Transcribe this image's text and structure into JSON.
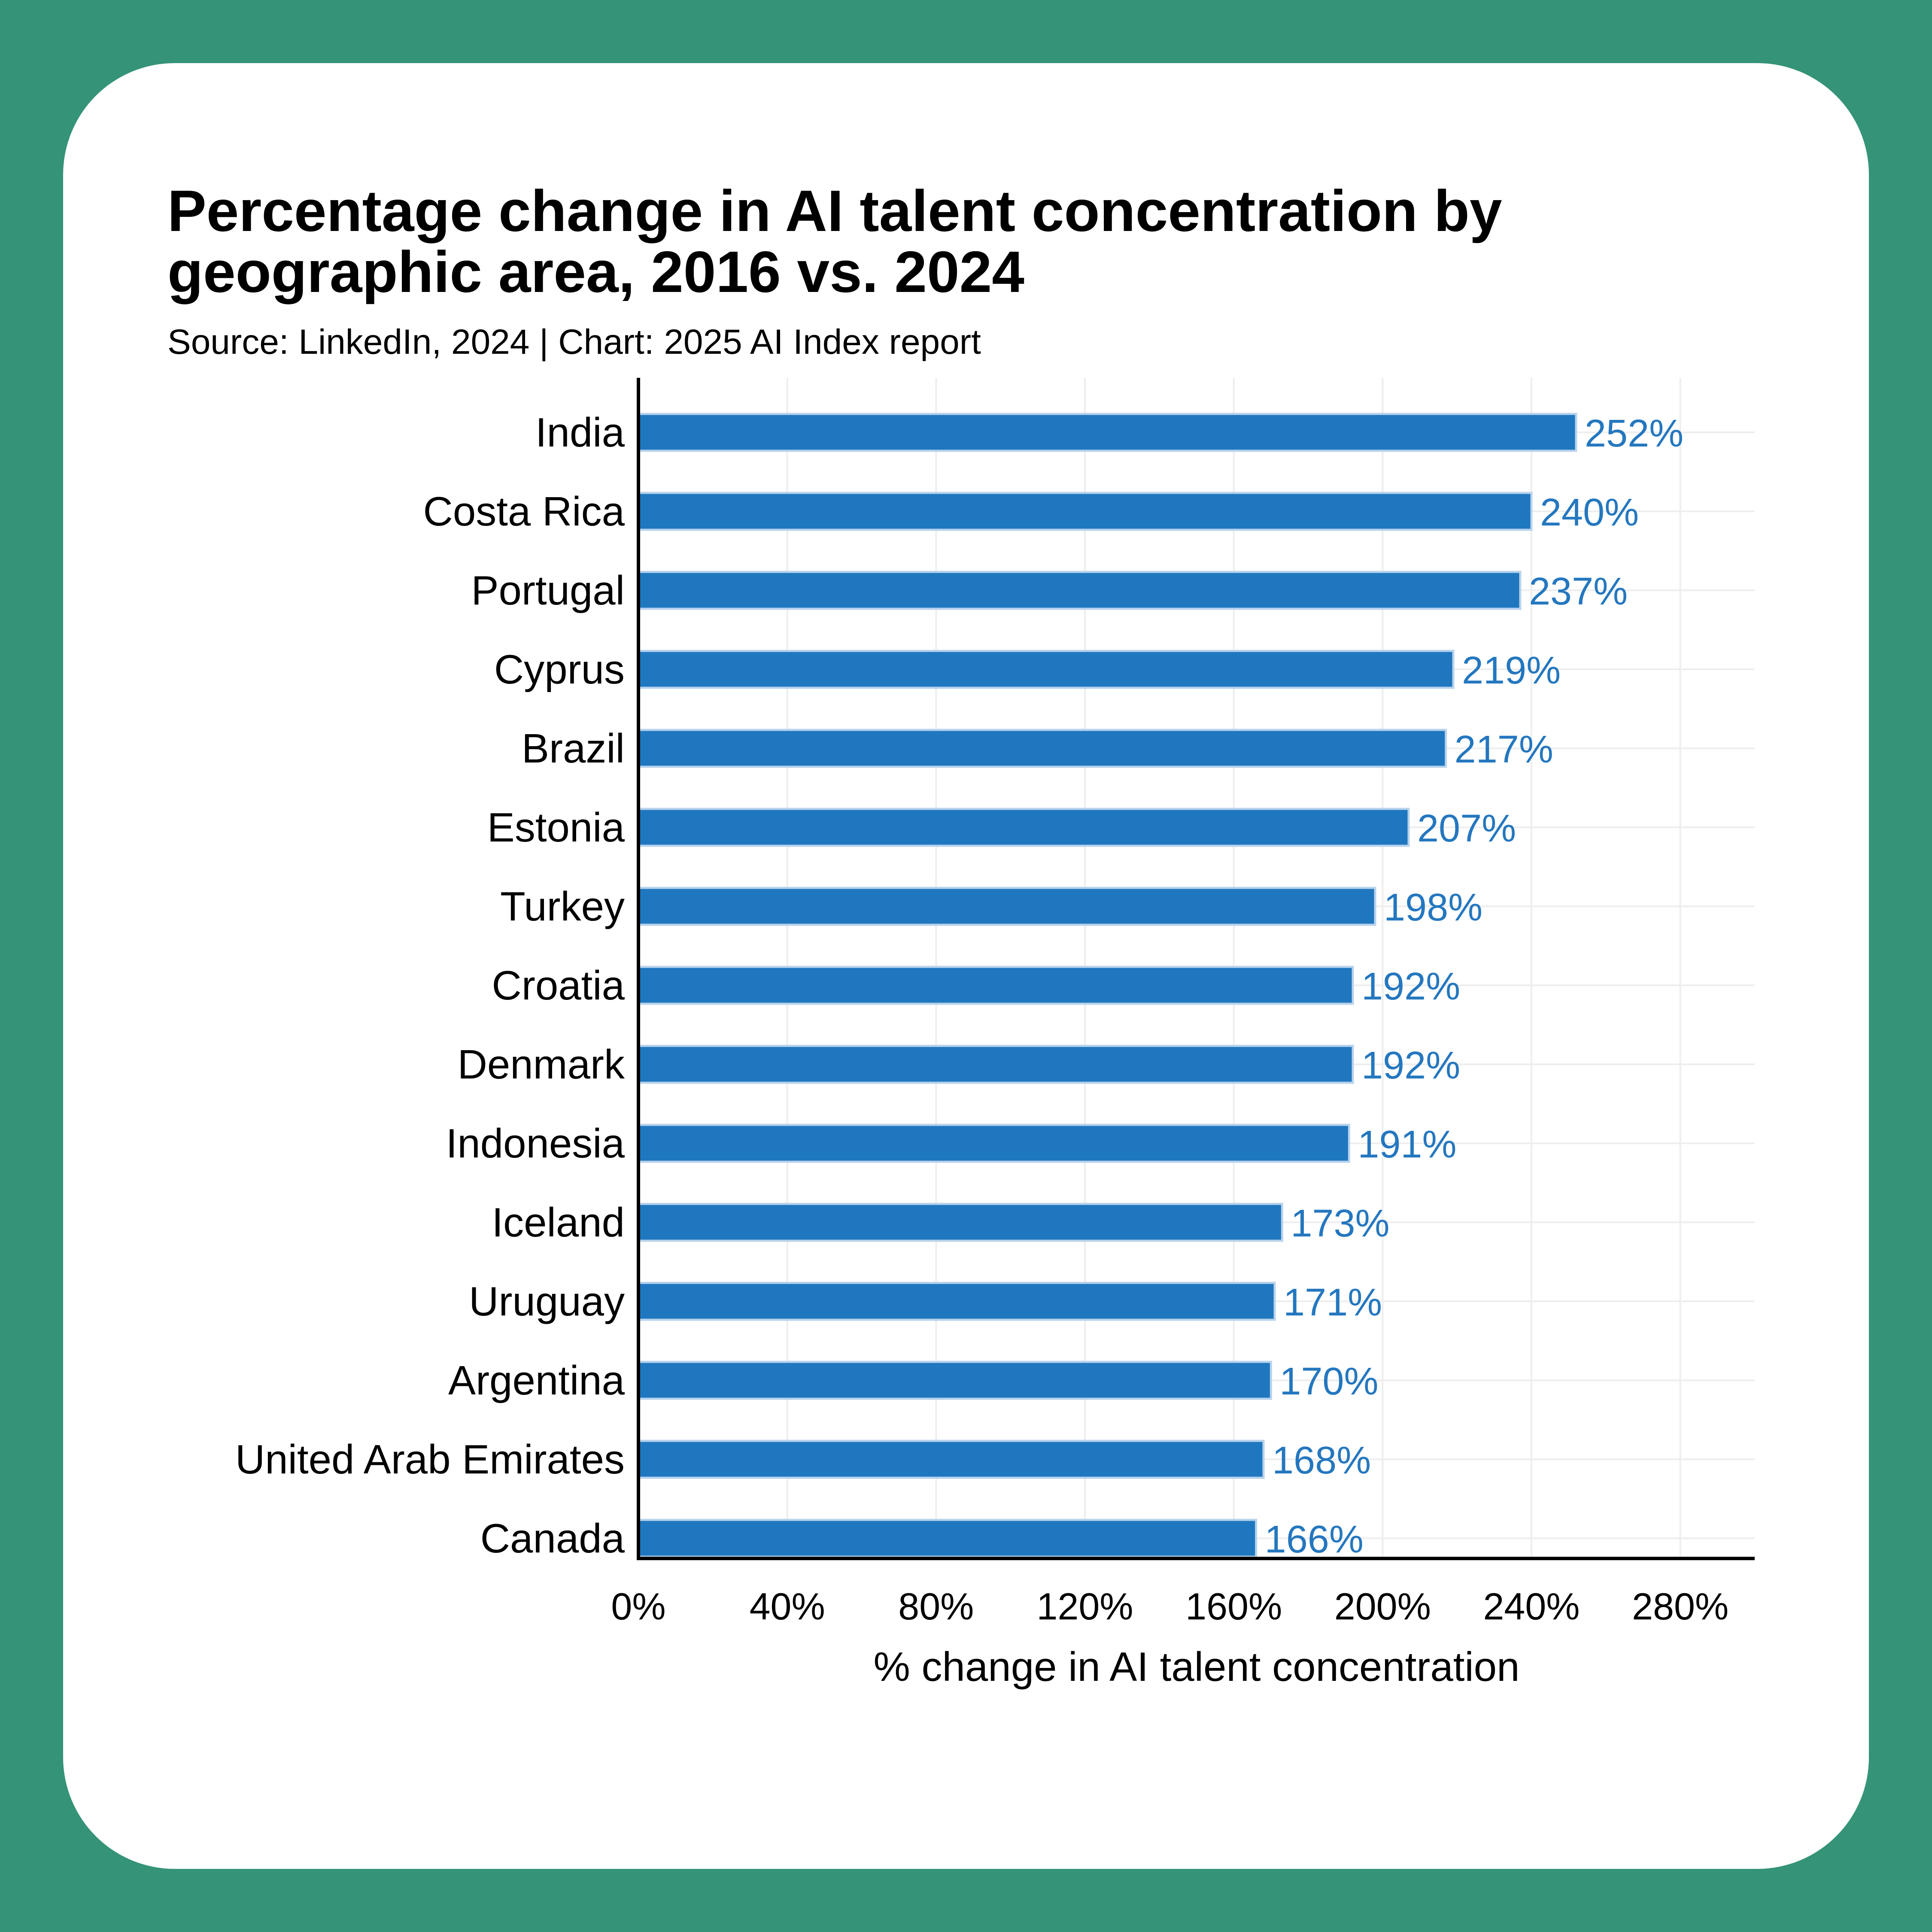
{
  "colors": {
    "background": "#359377",
    "card": "#ffffff",
    "bar": "#1f77bf",
    "value_label": "#2477bf",
    "grid": "#eeeeee"
  },
  "chart_data": {
    "type": "bar",
    "orientation": "horizontal",
    "title": "Percentage change in AI talent concentration by geographic area, 2016 vs. 2024",
    "subtitle": "Source: LinkedIn, 2024 | Chart: 2025 AI Index report",
    "categories": [
      "India",
      "Costa Rica",
      "Portugal",
      "Cyprus",
      "Brazil",
      "Estonia",
      "Turkey",
      "Croatia",
      "Denmark",
      "Indonesia",
      "Iceland",
      "Uruguay",
      "Argentina",
      "United Arab Emirates",
      "Canada"
    ],
    "values": [
      252,
      240,
      237,
      219,
      217,
      207,
      198,
      192,
      192,
      191,
      173,
      171,
      170,
      168,
      166
    ],
    "value_labels": [
      "252%",
      "240%",
      "237%",
      "219%",
      "217%",
      "207%",
      "198%",
      "192%",
      "192%",
      "191%",
      "173%",
      "171%",
      "170%",
      "168%",
      "166%"
    ],
    "xlabel": "% change in AI talent concentration",
    "ylabel": "",
    "xlim": [
      0,
      300
    ],
    "xticks": [
      0,
      40,
      80,
      120,
      160,
      200,
      240,
      280
    ],
    "xtick_labels": [
      "0%",
      "40%",
      "80%",
      "120%",
      "160%",
      "200%",
      "240%",
      "280%"
    ],
    "grid": true,
    "legend": "none"
  }
}
